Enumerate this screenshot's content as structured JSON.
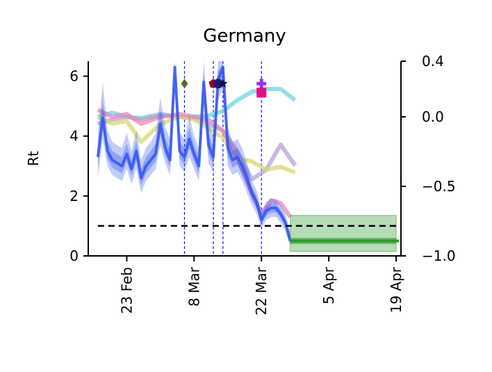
{
  "chart_data": {
    "type": "line",
    "title": "Germany",
    "ylabel": "Rt",
    "ylim": [
      0,
      6.5
    ],
    "yticks": [
      0,
      2,
      4,
      6
    ],
    "y2lim": [
      -1.0,
      0.4
    ],
    "y2ticks": [
      -1.0,
      -0.5,
      0.0,
      0.4
    ],
    "y2ticklabels": [
      "−1.0",
      "−0.5",
      "0.0",
      "0.4"
    ],
    "x_range": [
      "2020-02-15",
      "2020-04-20"
    ],
    "xticks": [
      "2020-02-23",
      "2020-03-08",
      "2020-03-22",
      "2020-04-05",
      "2020-04-19"
    ],
    "xticklabels": [
      "23 Feb",
      "8 Mar",
      "22 Mar",
      "5 Apr",
      "19 Apr"
    ],
    "reference_line": {
      "y": 1.0,
      "style": "dashed",
      "color": "#000000"
    },
    "intervention_dates": [
      "2020-03-06",
      "2020-03-12",
      "2020-03-14",
      "2020-03-22"
    ],
    "rt_series": {
      "color": "#3355ee",
      "x": [
        "2020-02-17",
        "2020-02-18",
        "2020-02-19",
        "2020-02-20",
        "2020-02-21",
        "2020-02-22",
        "2020-02-23",
        "2020-02-24",
        "2020-02-25",
        "2020-02-26",
        "2020-02-27",
        "2020-02-28",
        "2020-02-29",
        "2020-03-01",
        "2020-03-02",
        "2020-03-03",
        "2020-03-04",
        "2020-03-05",
        "2020-03-06",
        "2020-03-07",
        "2020-03-08",
        "2020-03-09",
        "2020-03-10",
        "2020-03-11",
        "2020-03-12",
        "2020-03-13",
        "2020-03-14",
        "2020-03-15",
        "2020-03-16",
        "2020-03-17",
        "2020-03-18",
        "2020-03-19",
        "2020-03-20",
        "2020-03-21",
        "2020-03-22",
        "2020-03-23",
        "2020-03-24",
        "2020-03-25",
        "2020-03-26",
        "2020-03-27",
        "2020-03-28"
      ],
      "y": [
        3.3,
        4.6,
        3.5,
        3.2,
        3.1,
        3.0,
        3.4,
        2.9,
        3.5,
        2.6,
        3.0,
        3.2,
        3.4,
        4.4,
        3.6,
        3.2,
        6.3,
        3.5,
        3.3,
        3.9,
        3.4,
        3.0,
        5.8,
        3.7,
        3.3,
        5.9,
        6.3,
        3.6,
        3.2,
        3.3,
        3.0,
        2.6,
        2.1,
        1.8,
        1.2,
        1.5,
        1.6,
        1.6,
        1.4,
        1.1,
        0.5
      ],
      "lower": [
        2.6,
        3.9,
        3.0,
        2.7,
        2.6,
        2.5,
        2.9,
        2.4,
        2.9,
        2.1,
        2.5,
        2.7,
        2.9,
        3.7,
        3.1,
        2.7,
        5.5,
        3.0,
        2.8,
        3.3,
        2.9,
        2.5,
        5.0,
        3.1,
        2.8,
        5.2,
        5.6,
        3.0,
        2.7,
        2.8,
        2.5,
        2.1,
        1.7,
        1.4,
        0.9,
        1.2,
        1.3,
        1.3,
        1.1,
        0.8,
        0.3
      ],
      "upper": [
        4.0,
        5.8,
        4.2,
        3.8,
        3.7,
        3.6,
        4.1,
        3.5,
        4.2,
        3.2,
        3.6,
        3.8,
        4.1,
        5.3,
        4.3,
        3.9,
        6.5,
        4.1,
        3.9,
        4.7,
        4.0,
        3.6,
        6.5,
        4.4,
        4.0,
        6.5,
        6.5,
        4.3,
        3.8,
        3.9,
        3.6,
        3.1,
        2.5,
        2.2,
        1.5,
        1.8,
        1.9,
        1.9,
        1.7,
        1.4,
        0.8
      ]
    },
    "forecast_band": {
      "color": "#2e9a2e",
      "x": [
        "2020-03-28",
        "2020-04-19"
      ],
      "y": 0.5,
      "lower": 0.15,
      "upper": 1.35
    },
    "secondary_series": [
      {
        "color": "#6fd5dd",
        "axis": "right",
        "x": [
          "2020-02-17",
          "2020-02-20",
          "2020-02-23",
          "2020-02-26",
          "2020-03-01",
          "2020-03-05",
          "2020-03-08",
          "2020-03-11",
          "2020-03-14",
          "2020-03-17",
          "2020-03-20",
          "2020-03-23",
          "2020-03-26",
          "2020-03-29"
        ],
        "y": [
          0.0,
          0.03,
          0.0,
          -0.01,
          0.02,
          0.0,
          0.0,
          0.01,
          0.04,
          0.12,
          0.18,
          0.2,
          0.2,
          0.12
        ]
      },
      {
        "color": "#b8a0d8",
        "axis": "right",
        "x": [
          "2020-02-17",
          "2020-02-20",
          "2020-02-23",
          "2020-02-26",
          "2020-03-01",
          "2020-03-05",
          "2020-03-08",
          "2020-03-11",
          "2020-03-14",
          "2020-03-17",
          "2020-03-20",
          "2020-03-23",
          "2020-03-26",
          "2020-03-29"
        ],
        "y": [
          -0.05,
          -0.02,
          0.0,
          -0.02,
          0.01,
          0.0,
          -0.01,
          -0.05,
          -0.1,
          -0.25,
          -0.45,
          -0.38,
          -0.2,
          -0.35
        ]
      },
      {
        "color": "#d8d870",
        "axis": "right",
        "x": [
          "2020-02-17",
          "2020-02-20",
          "2020-02-23",
          "2020-02-26",
          "2020-03-01",
          "2020-03-05",
          "2020-03-08",
          "2020-03-11",
          "2020-03-14",
          "2020-03-17",
          "2020-03-20",
          "2020-03-23",
          "2020-03-26",
          "2020-03-29"
        ],
        "y": [
          0.0,
          -0.05,
          -0.03,
          -0.18,
          -0.05,
          0.0,
          -0.02,
          -0.08,
          -0.15,
          -0.3,
          -0.32,
          -0.38,
          -0.36,
          -0.4
        ]
      },
      {
        "color": "#e58ab8",
        "axis": "right",
        "x": [
          "2020-02-17",
          "2020-02-20",
          "2020-02-23",
          "2020-02-26",
          "2020-03-01",
          "2020-03-05",
          "2020-03-08",
          "2020-03-11",
          "2020-03-14",
          "2020-03-17",
          "2020-03-20",
          "2020-03-22",
          "2020-03-24",
          "2020-03-26",
          "2020-03-28"
        ],
        "y": [
          0.05,
          0.0,
          0.02,
          -0.05,
          0.0,
          0.02,
          0.0,
          -0.02,
          -0.1,
          -0.3,
          -0.55,
          -0.7,
          -0.6,
          -0.62,
          -0.72
        ]
      }
    ],
    "markers": [
      {
        "date": "2020-03-06",
        "y": 5.75,
        "shape": "diamond",
        "color": "#556b2f"
      },
      {
        "date": "2020-03-12",
        "y": 5.75,
        "shape": "pentagon",
        "color": "#aa0000"
      },
      {
        "date": "2020-03-13",
        "y": 5.75,
        "shape": "circle",
        "color": "#1a1a88"
      },
      {
        "date": "2020-03-14",
        "y": 5.75,
        "shape": "star",
        "color": "#111133"
      },
      {
        "date": "2020-03-22",
        "y": 5.75,
        "shape": "plus",
        "color": "#9933ee"
      },
      {
        "date": "2020-03-22",
        "y": 5.45,
        "shape": "square",
        "color": "#dd1188"
      }
    ]
  }
}
